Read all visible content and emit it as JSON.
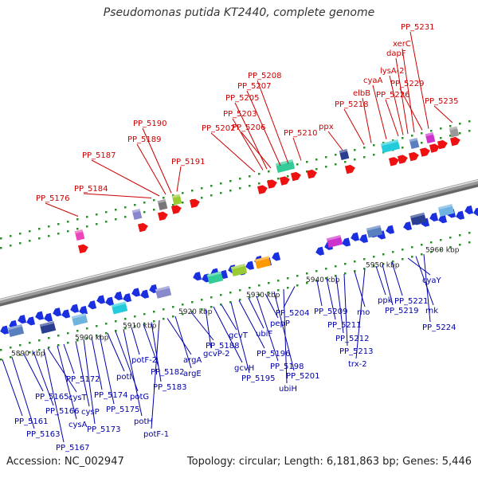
{
  "title": "Pseudomonas putida KT2440, complete genome",
  "accession": "Accession: NC_002947",
  "topology": "Topology: circular; Length: 6,181,863 bp; Genes: 5,446",
  "colors": {
    "upper_label": "#cc0000",
    "lower_label": "#0000aa",
    "upper_feature": "#ee1111",
    "lower_feature": "#1a2fe0",
    "backbone": "#999999",
    "dot": "#2e8b2e"
  },
  "kbp_ticks": [
    "5890 kbp",
    "5900 kbp",
    "5910 kbp",
    "5920 kbp",
    "5930 kbp",
    "5940 kbp",
    "5950 kbp",
    "5960 kbp"
  ],
  "upper_labels": [
    "PP_5176",
    "PP_5184",
    "PP_5187",
    "PP_5189",
    "PP_5190",
    "PP_5191",
    "PP_5202",
    "PP_5203",
    "PP_5205",
    "PP_5206",
    "PP_5207",
    "PP_5208",
    "PP_5210",
    "ppx",
    "PP_5218",
    "elbB",
    "cyaA",
    "lysA-2",
    "dapF",
    "xerC",
    "PP_5226",
    "PP_5229",
    "PP_5231",
    "PP_5235"
  ],
  "lower_labels": [
    "PP_5161",
    "PP_5163",
    "PP_5165",
    "PP_5166",
    "PP_5167",
    "cysT",
    "cysA",
    "PP_5172",
    "cysP",
    "PP_5173",
    "PP_5174",
    "PP_5175",
    "potI",
    "potG",
    "potH",
    "potF-2",
    "PP_5182",
    "PP_5183",
    "potF-1",
    "argA",
    "argE",
    "PP_5188",
    "gcvP-2",
    "gcvH",
    "gcvT",
    "PP_5195",
    "PP_5196",
    "ubiF",
    "PP_5198",
    "pepP",
    "PP_5201",
    "ubiH",
    "PP_5204",
    "PP_5209",
    "PP_5211",
    "PP_5212",
    "PP_5213",
    "rho",
    "trx-2",
    "ppk",
    "PP_5219",
    "PP_5221",
    "cyaY",
    "rnk",
    "PP_5224"
  ]
}
